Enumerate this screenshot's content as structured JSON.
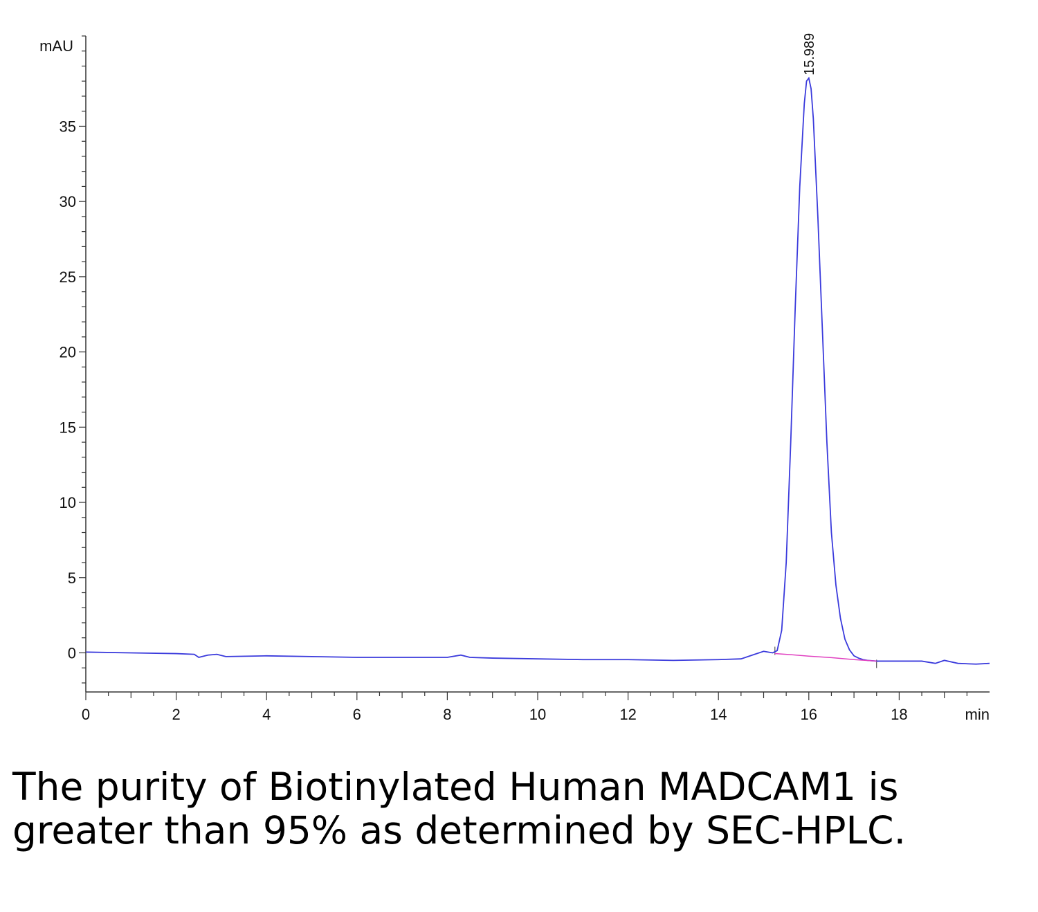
{
  "chart_data": {
    "type": "line",
    "title": "",
    "xlabel": "",
    "ylabel": "",
    "x_unit": "min",
    "y_unit": "mAU",
    "xlim": [
      0,
      20
    ],
    "ylim": [
      -2.6,
      41
    ],
    "x_ticks": [
      0,
      2,
      4,
      6,
      8,
      10,
      12,
      14,
      16,
      18
    ],
    "y_ticks": [
      0,
      5,
      10,
      15,
      20,
      25,
      30,
      35
    ],
    "grid": false,
    "peak": {
      "label": "15.989",
      "x": 15.989,
      "y": 38.2
    },
    "series": [
      {
        "color": "#3a3adc",
        "x": [
          0,
          1,
          2,
          2.4,
          2.5,
          2.7,
          2.9,
          3.1,
          4,
          5,
          6,
          7,
          8,
          8.3,
          8.5,
          9,
          10,
          11,
          12,
          13,
          14,
          14.5,
          14.8,
          15.0,
          15.2,
          15.3,
          15.4,
          15.5,
          15.6,
          15.7,
          15.8,
          15.9,
          15.95,
          16.0,
          16.05,
          16.1,
          16.2,
          16.3,
          16.4,
          16.5,
          16.6,
          16.7,
          16.8,
          16.9,
          17.0,
          17.1,
          17.2,
          17.3,
          17.5,
          18,
          18.5,
          18.8,
          19.0,
          19.3,
          19.7,
          20
        ],
        "y": [
          0.05,
          0.0,
          -0.05,
          -0.1,
          -0.3,
          -0.15,
          -0.1,
          -0.25,
          -0.2,
          -0.25,
          -0.3,
          -0.3,
          -0.3,
          -0.15,
          -0.3,
          -0.35,
          -0.4,
          -0.45,
          -0.45,
          -0.5,
          -0.45,
          -0.4,
          -0.1,
          0.1,
          0.0,
          0.15,
          1.5,
          6.0,
          14.0,
          23.0,
          31.0,
          36.5,
          38.0,
          38.2,
          37.5,
          35.5,
          29.0,
          21.5,
          14.0,
          8.0,
          4.5,
          2.3,
          0.9,
          0.2,
          -0.2,
          -0.35,
          -0.45,
          -0.5,
          -0.55,
          -0.55,
          -0.55,
          -0.7,
          -0.5,
          -0.7,
          -0.75,
          -0.7
        ]
      },
      {
        "color": "#e040c0",
        "x": [
          15.25,
          15.6,
          16.0,
          16.5,
          17.0,
          17.5
        ],
        "y": [
          -0.05,
          -0.12,
          -0.22,
          -0.32,
          -0.45,
          -0.55
        ]
      }
    ]
  },
  "caption": "The purity of Biotinylated Human MADCAM1 is greater than 95% as determined by SEC-HPLC."
}
